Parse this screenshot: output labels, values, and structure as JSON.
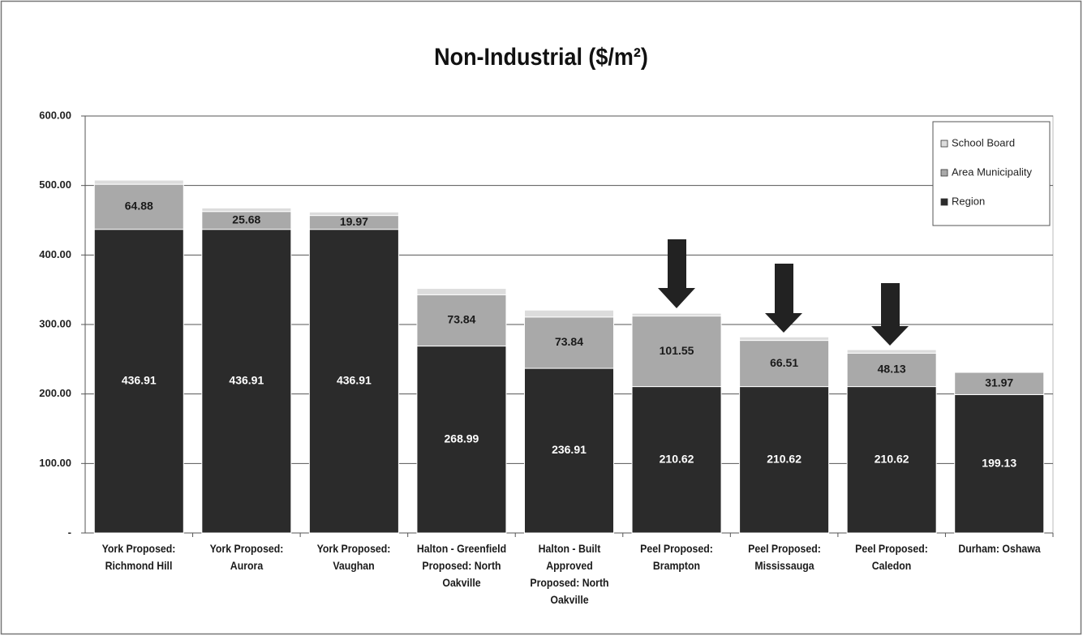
{
  "chart_data": {
    "type": "stacked_bar",
    "title": "Non-Industrial ($/m²)",
    "categories": [
      "York Proposed: Richmond Hill",
      "York Proposed: Aurora",
      "York Proposed: Vaughan",
      "Halton - Greenfield Proposed: North Oakville",
      "Halton - Built Approved Proposed: North Oakville",
      "Peel Proposed: Brampton",
      "Peel Proposed: Mississauga",
      "Peel Proposed: Caledon",
      "Durham: Oshawa"
    ],
    "series": [
      {
        "name": "Region",
        "color": "#2b2b2b",
        "label_color": "#ffffff",
        "show_labels": true,
        "values": [
          436.91,
          436.91,
          436.91,
          268.99,
          236.91,
          210.62,
          210.62,
          210.62,
          199.13
        ]
      },
      {
        "name": "Area Municipality",
        "color": "#a9a9a9",
        "label_color": "#1a1a1a",
        "show_labels": true,
        "values": [
          64.88,
          25.68,
          19.97,
          73.84,
          73.84,
          101.55,
          66.51,
          48.13,
          31.97
        ]
      },
      {
        "name": "School Board",
        "color": "#dcdcdc",
        "label_color": "#1a1a1a",
        "show_labels": false,
        "values": [
          6,
          5,
          5,
          9,
          10,
          4,
          5,
          5,
          0
        ]
      }
    ],
    "ylim": [
      0,
      600
    ],
    "yticks": [
      {
        "value": 0,
        "label": "-"
      },
      {
        "value": 100,
        "label": "100.00"
      },
      {
        "value": 200,
        "label": "200.00"
      },
      {
        "value": 300,
        "label": "300.00"
      },
      {
        "value": 400,
        "label": "400.00"
      },
      {
        "value": 500,
        "label": "500.00"
      },
      {
        "value": 600,
        "label": "600.00"
      }
    ],
    "grid": true,
    "legend": "top-right"
  }
}
